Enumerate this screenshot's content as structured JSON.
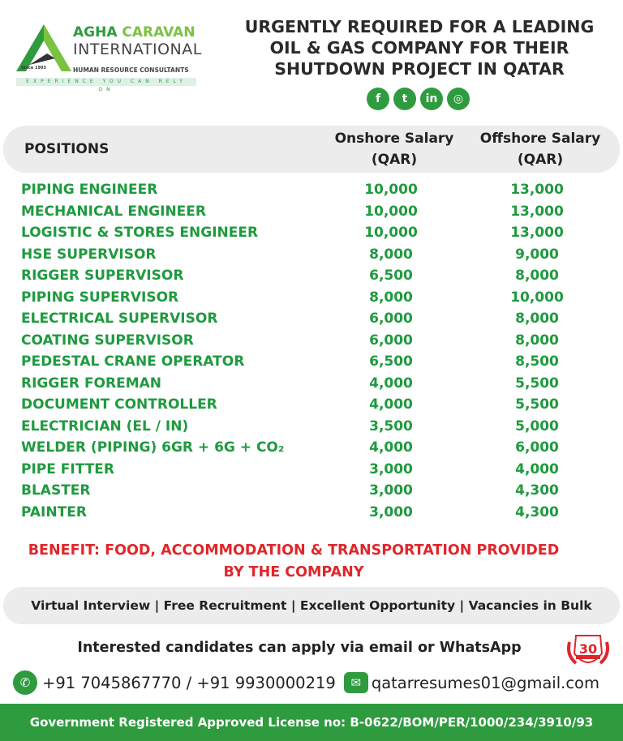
{
  "logo": {
    "brand_part1": "AGHA",
    "brand_part2": "CARAVAN",
    "brand_line2": "INTERNATIONAL",
    "subtitle": "HUMAN RESOURCE CONSULTANTS",
    "since": "Since 1993",
    "tagline": "EXPERIENCE YOU CAN RELY ON"
  },
  "headline": [
    "URGENTLY REQUIRED FOR A LEADING",
    "OIL & GAS COMPANY FOR THEIR",
    "SHUTDOWN PROJECT IN QATAR"
  ],
  "social": [
    {
      "icon": "facebook-icon",
      "glyph": "f"
    },
    {
      "icon": "twitter-icon",
      "glyph": "t"
    },
    {
      "icon": "linkedin-icon",
      "glyph": "in"
    },
    {
      "icon": "instagram-icon",
      "glyph": "◎"
    }
  ],
  "table": {
    "headers": {
      "positions": "POSITIONS",
      "onshore": [
        "Onshore Salary",
        "(QAR)"
      ],
      "offshore": [
        "Offshore Salary",
        "(QAR)"
      ]
    },
    "rows": [
      {
        "position": "PIPING ENGINEER",
        "onshore": "10,000",
        "offshore": "13,000"
      },
      {
        "position": "MECHANICAL ENGINEER",
        "onshore": "10,000",
        "offshore": "13,000"
      },
      {
        "position": "LOGISTIC & STORES ENGINEER",
        "onshore": "10,000",
        "offshore": "13,000"
      },
      {
        "position": "HSE SUPERVISOR",
        "onshore": "8,000",
        "offshore": "9,000"
      },
      {
        "position": "RIGGER SUPERVISOR",
        "onshore": "6,500",
        "offshore": "8,000"
      },
      {
        "position": "PIPING SUPERVISOR",
        "onshore": "8,000",
        "offshore": "10,000"
      },
      {
        "position": "ELECTRICAL SUPERVISOR",
        "onshore": "6,000",
        "offshore": "8,000"
      },
      {
        "position": "COATING SUPERVISOR",
        "onshore": "6,000",
        "offshore": "8,000"
      },
      {
        "position": "PEDESTAL CRANE OPERATOR",
        "onshore": "6,500",
        "offshore": "8,500"
      },
      {
        "position": "RIGGER FOREMAN",
        "onshore": "4,000",
        "offshore": "5,500"
      },
      {
        "position": "DOCUMENT CONTROLLER",
        "onshore": "4,000",
        "offshore": "5,500"
      },
      {
        "position": "ELECTRICIAN (EL / IN)",
        "onshore": "3,500",
        "offshore": "5,000"
      },
      {
        "position": "WELDER (PIPING) 6GR + 6G + CO₂",
        "onshore": "4,000",
        "offshore": "6,000"
      },
      {
        "position": "PIPE FITTER",
        "onshore": "3,000",
        "offshore": "4,000"
      },
      {
        "position": "BLASTER",
        "onshore": "3,000",
        "offshore": "4,300"
      },
      {
        "position": "PAINTER",
        "onshore": "3,000",
        "offshore": "4,300"
      }
    ]
  },
  "benefit": [
    "BENEFIT: FOOD, ACCOMMODATION & TRANSPORTATION PROVIDED",
    "BY THE COMPANY"
  ],
  "highlights": "Virtual Interview |  Free Recruitment | Excellent Opportunity | Vacancies in Bulk",
  "apply": "Interested candidates can apply via email or WhatsApp",
  "badge": "30",
  "contact": {
    "phones": "+91 7045867770 / +91 9930000219",
    "email": "qatarresumes01@gmail.com"
  },
  "footer": "Government Registered Approved License no: B-0622/BOM/PER/1000/234/3910/93",
  "colors": {
    "green": "#2e9b3f",
    "text_green": "#1f9a3f",
    "red": "#e0262b",
    "grey_band": "#ececec"
  }
}
